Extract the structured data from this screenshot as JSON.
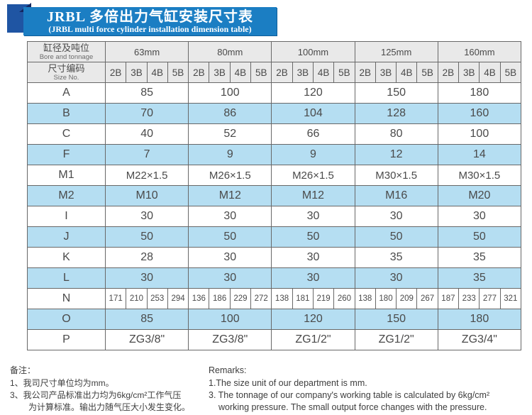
{
  "title": {
    "zh": "JRBL 多倍出力气缸安装尺寸表",
    "en": "(JRBL multi force cylinder installation dimension table)"
  },
  "table": {
    "corner": {
      "zh": "缸径及吨位",
      "en": "Bore and tonnage"
    },
    "size_no": {
      "zh": "尺寸编码",
      "en": "Size No."
    },
    "groups": [
      "63mm",
      "80mm",
      "100mm",
      "125mm",
      "160mm"
    ],
    "sub_headers": [
      "2B",
      "3B",
      "4B",
      "5B"
    ],
    "rows": [
      {
        "label": "A",
        "shaded": false,
        "values": [
          "85",
          "100",
          "120",
          "150",
          "180"
        ]
      },
      {
        "label": "B",
        "shaded": true,
        "values": [
          "70",
          "86",
          "104",
          "128",
          "160"
        ]
      },
      {
        "label": "C",
        "shaded": false,
        "values": [
          "40",
          "52",
          "66",
          "80",
          "100"
        ]
      },
      {
        "label": "F",
        "shaded": true,
        "values": [
          "7",
          "9",
          "9",
          "12",
          "14"
        ]
      },
      {
        "label": "M1",
        "shaded": false,
        "values": [
          "M22×1.5",
          "M26×1.5",
          "M26×1.5",
          "M30×1.5",
          "M30×1.5"
        ],
        "m": true
      },
      {
        "label": "M2",
        "shaded": true,
        "values": [
          "M10",
          "M12",
          "M12",
          "M16",
          "M20"
        ]
      },
      {
        "label": "I",
        "shaded": false,
        "values": [
          "30",
          "30",
          "30",
          "30",
          "30"
        ]
      },
      {
        "label": "J",
        "shaded": true,
        "values": [
          "50",
          "50",
          "50",
          "50",
          "50"
        ]
      },
      {
        "label": "K",
        "shaded": false,
        "values": [
          "28",
          "30",
          "30",
          "35",
          "35"
        ]
      },
      {
        "label": "L",
        "shaded": true,
        "values": [
          "30",
          "30",
          "30",
          "30",
          "35"
        ]
      },
      {
        "label": "N",
        "shaded": false,
        "per_column": true,
        "values": [
          "171",
          "210",
          "253",
          "294",
          "136",
          "186",
          "229",
          "272",
          "138",
          "181",
          "219",
          "260",
          "138",
          "180",
          "209",
          "267",
          "187",
          "233",
          "277",
          "321"
        ]
      },
      {
        "label": "O",
        "shaded": true,
        "values": [
          "85",
          "100",
          "120",
          "150",
          "180"
        ]
      },
      {
        "label": "P",
        "shaded": false,
        "values": [
          "ZG3/8\"",
          "ZG3/8\"",
          "ZG1/2\"",
          "ZG1/2\"",
          "ZG3/4\""
        ]
      }
    ]
  },
  "notes": {
    "zh": {
      "heading": "备注：",
      "items": [
        "1、我司尺寸单位均为mm。",
        "3、我公司产品标准出力均为6kg/cm²工作气压\n为计算标准。输出力随气压大小发生变化。"
      ]
    },
    "en": {
      "heading": "Remarks:",
      "items": [
        "1.The size unit of our department is mm.",
        "3. The tonnage of our company's working table is calculated by 6kg/cm²\nworking pressure. The small output force changes with the pressure."
      ]
    }
  },
  "colors": {
    "banner_blue": "#1b7ec3",
    "corner_blue": "#1f55a3",
    "fold_navy": "#14265e",
    "row_shade_blue": "#b5def2",
    "header_gray": "#e9e9e9",
    "text_gray": "#4a4a4a"
  }
}
